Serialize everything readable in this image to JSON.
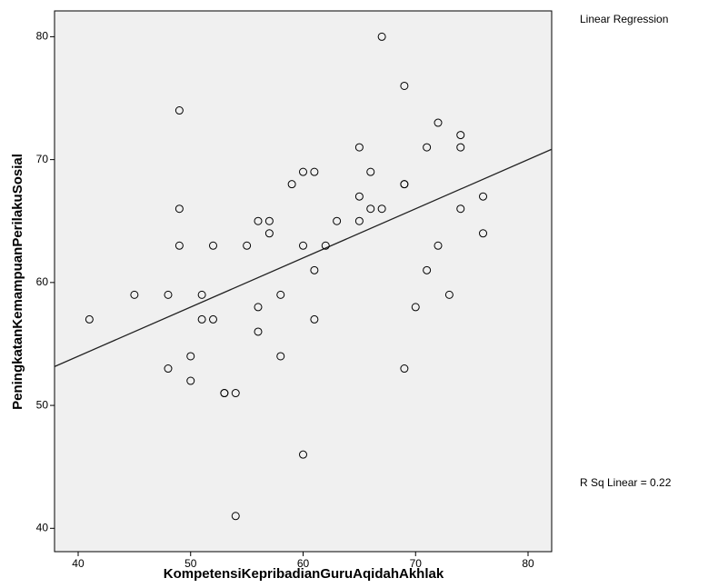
{
  "chart_data": {
    "type": "scatter",
    "x_label": "KompetensiKepribadianGuruAqidahAkhlak",
    "y_label": "PeningkatanKemampuanPerilakuSosial",
    "legend_title": "Linear Regression",
    "annotation": "R Sq Linear = 0.22",
    "x": [
      41,
      45,
      48,
      48,
      49,
      49,
      49,
      50,
      50,
      51,
      51,
      52,
      52,
      53,
      53,
      54,
      54,
      55,
      56,
      56,
      56,
      57,
      57,
      58,
      58,
      59,
      60,
      60,
      60,
      61,
      61,
      61,
      62,
      63,
      65,
      65,
      65,
      66,
      66,
      67,
      67,
      69,
      69,
      69,
      69,
      70,
      71,
      71,
      72,
      72,
      73,
      74,
      74,
      74,
      76,
      76
    ],
    "values": [
      57,
      59,
      59,
      53,
      74,
      66,
      63,
      54,
      52,
      59,
      57,
      57,
      63,
      51,
      51,
      51,
      41,
      63,
      65,
      58,
      56,
      65,
      64,
      59,
      54,
      68,
      69,
      63,
      46,
      69,
      61,
      57,
      63,
      65,
      71,
      67,
      65,
      69,
      66,
      80,
      66,
      76,
      68,
      68,
      53,
      58,
      71,
      61,
      73,
      63,
      59,
      72,
      71,
      66,
      67,
      64
    ],
    "fit": {
      "slope": 0.4,
      "intercept": 38.0
    },
    "xlim": [
      37.9,
      82.1
    ],
    "ylim": [
      38.1,
      82.1
    ],
    "xticks": [
      40,
      50,
      60,
      70,
      80
    ],
    "yticks": [
      40,
      50,
      60,
      70,
      80
    ]
  }
}
